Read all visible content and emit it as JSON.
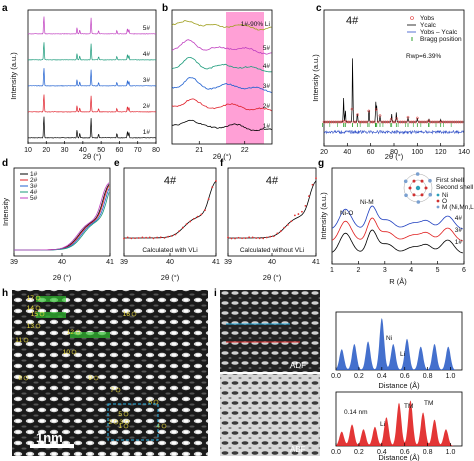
{
  "panels": {
    "a": {
      "label": "a",
      "xlabel": "2θ (°)",
      "ylabel": "Intensity (a.u.)",
      "xticks": [
        "10",
        "20",
        "30",
        "40",
        "50",
        "60",
        "70",
        "80"
      ],
      "series": [
        "1#",
        "2#",
        "3#",
        "4#",
        "5#"
      ],
      "colors": [
        "#000000",
        "#e0202a",
        "#2060d0",
        "#1a9a7a",
        "#c040c0"
      ]
    },
    "b": {
      "label": "b",
      "xlabel": "2θ (°)",
      "xticks": [
        "21",
        "22"
      ],
      "series": [
        "1#",
        "2#",
        "3#",
        "4#",
        "5#",
        "1#-90% Li"
      ],
      "colors": [
        "#000000",
        "#e0202a",
        "#2060d0",
        "#1a9a7a",
        "#c040c0",
        "#a0a020"
      ],
      "highlight": "#ff80c8"
    },
    "c": {
      "label": "c",
      "title": "4#",
      "xlabel": "2θ (°)",
      "ylabel": "Intensity (a.u.)",
      "xticks": [
        "20",
        "40",
        "60",
        "80",
        "100",
        "120",
        "140"
      ],
      "legend": [
        "Yobs",
        "Ycalc",
        "Yobs – Ycalc",
        "Bragg position"
      ],
      "rwp": "Rwp=6.39%"
    },
    "d": {
      "label": "d",
      "xlabel": "2θ (°)",
      "ylabel": "Intensity",
      "xticks": [
        "39",
        "40",
        "41"
      ],
      "series": [
        "1#",
        "2#",
        "3#",
        "4#",
        "5#"
      ],
      "colors": [
        "#000000",
        "#e0202a",
        "#2060d0",
        "#1a9a7a",
        "#c040c0"
      ]
    },
    "e": {
      "label": "e",
      "title": "4#",
      "xlabel": "2θ (°)",
      "xticks": [
        "39",
        "40",
        "41"
      ],
      "note": "Calculated with VLi"
    },
    "f": {
      "label": "f",
      "title": "4#",
      "xlabel": "2θ (°)",
      "xticks": [
        "39",
        "40",
        "41"
      ],
      "note": "Calculated without VLi"
    },
    "g": {
      "label": "g",
      "xlabel": "R (Å)",
      "ylabel": "Intensity (a.u.)",
      "xticks": [
        "1",
        "2",
        "3",
        "4",
        "5",
        "6"
      ],
      "series": [
        "1#",
        "3#",
        "4#"
      ],
      "peaks": [
        "Ni-O",
        "Ni-M"
      ],
      "inset_legend": [
        "Ni",
        "O",
        "M (Ni,Mn,Li)"
      ],
      "inset_shells": [
        "First shell",
        "Second shell"
      ]
    },
    "h": {
      "label": "h",
      "scale": "1nm",
      "sites": [
        "1",
        "2",
        "3",
        "4",
        "5",
        "6",
        "7",
        "8",
        "9",
        "10",
        "11",
        "12",
        "13",
        "14",
        "15",
        "16",
        "17"
      ]
    },
    "i": {
      "label": "i",
      "adf": "ADF",
      "abf": "ABF",
      "xlabel": "Distance (Å)",
      "xticks": [
        "0.0",
        "0.2",
        "0.4",
        "0.6",
        "0.8",
        "1.0"
      ],
      "top_peaks": [
        "Ni",
        "Li"
      ],
      "bottom_peaks": [
        "0.14 nm",
        "TM",
        "TM",
        "Li"
      ]
    }
  },
  "chart_data": [
    {
      "type": "line",
      "id": "a",
      "xlabel": "2θ (°)",
      "ylabel": "Intensity (a.u.)",
      "xlim": [
        10,
        80
      ],
      "series": [
        {
          "name": "1#"
        },
        {
          "name": "2#"
        },
        {
          "name": "3#"
        },
        {
          "name": "4#"
        },
        {
          "name": "5#"
        }
      ],
      "peaks_x": [
        18.7,
        36.8,
        38.3,
        44.5,
        48.6,
        58.6,
        64.4,
        65.2
      ]
    },
    {
      "type": "line",
      "id": "b",
      "xlabel": "2θ (°)",
      "xlim": [
        20.4,
        22.6
      ],
      "highlight_range": [
        21.3,
        22.1
      ],
      "series": [
        {
          "name": "1#"
        },
        {
          "name": "2#"
        },
        {
          "name": "3#"
        },
        {
          "name": "4#"
        },
        {
          "name": "5#"
        },
        {
          "name": "1#-90% Li"
        }
      ]
    },
    {
      "type": "line",
      "id": "c",
      "title": "4#",
      "xlabel": "2θ (°)",
      "xlim": [
        20,
        140
      ],
      "rwp": 6.39
    },
    {
      "type": "line",
      "id": "d",
      "xlabel": "2θ (°)",
      "ylabel": "Intensity",
      "xlim": [
        39,
        41
      ],
      "series": [
        {
          "name": "1#"
        },
        {
          "name": "2#"
        },
        {
          "name": "3#"
        },
        {
          "name": "4#"
        },
        {
          "name": "5#"
        }
      ]
    },
    {
      "type": "line",
      "id": "g",
      "xlabel": "R (Å)",
      "ylabel": "Intensity (a.u.)",
      "xlim": [
        1,
        6
      ],
      "series": [
        {
          "name": "1#"
        },
        {
          "name": "3#"
        },
        {
          "name": "4#"
        }
      ]
    },
    {
      "type": "area",
      "id": "i-top",
      "xlabel": "Distance (Å)",
      "xlim": [
        0,
        1.1
      ]
    },
    {
      "type": "area",
      "id": "i-bottom",
      "xlabel": "Distance (Å)",
      "xlim": [
        0,
        1.1
      ]
    }
  ]
}
